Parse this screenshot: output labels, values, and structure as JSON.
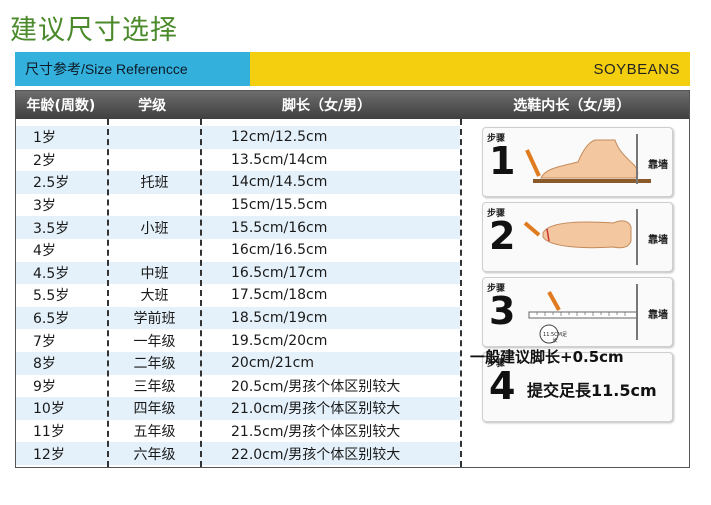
{
  "page_title": "建议尺寸选择",
  "banner": {
    "left_text": "尺寸参考/Size Referencce",
    "brand": "SOYBEANS",
    "left_color": "#34b0dc",
    "right_color": "#f4cf10"
  },
  "table": {
    "headers": [
      "年龄(周数)",
      "学级",
      "脚长（女/男）",
      "选鞋内长（女/男）"
    ],
    "rows": [
      {
        "age": "1岁",
        "grade": "",
        "foot": "12cm/12.5cm"
      },
      {
        "age": "2岁",
        "grade": "",
        "foot": "13.5cm/14cm"
      },
      {
        "age": "2.5岁",
        "grade": "托班",
        "foot": "14cm/14.5cm"
      },
      {
        "age": "3岁",
        "grade": "",
        "foot": "15cm/15.5cm"
      },
      {
        "age": "3.5岁",
        "grade": "小班",
        "foot": "15.5cm/16cm"
      },
      {
        "age": "4岁",
        "grade": "",
        "foot": "16cm/16.5cm"
      },
      {
        "age": "4.5岁",
        "grade": "中班",
        "foot": "16.5cm/17cm"
      },
      {
        "age": "5.5岁",
        "grade": "大班",
        "foot": "17.5cm/18cm"
      },
      {
        "age": "6.5岁",
        "grade": "学前班",
        "foot": "18.5cm/19cm"
      },
      {
        "age": "7岁",
        "grade": "一年级",
        "foot": "19.5cm/20cm"
      },
      {
        "age": "8岁",
        "grade": "二年级",
        "foot": "20cm/21cm"
      },
      {
        "age": "9岁",
        "grade": "三年级",
        "foot": "20.5cm/男孩个体区别较大"
      },
      {
        "age": "10岁",
        "grade": "四年级",
        "foot": "21.0cm/男孩个体区别较大"
      },
      {
        "age": "11岁",
        "grade": "五年级",
        "foot": "21.5cm/男孩个体区别较大"
      },
      {
        "age": "12岁",
        "grade": "六年级",
        "foot": "22.0cm/男孩个体区别较大"
      }
    ]
  },
  "steps": [
    {
      "label": "步骤",
      "number": "1",
      "wall": "靠墙"
    },
    {
      "label": "步骤",
      "number": "2",
      "wall": "靠墙"
    },
    {
      "label": "步骤",
      "number": "3",
      "wall": "靠墙",
      "ruler_note": "11.5CM足长"
    },
    {
      "label": "步骤",
      "number": "4",
      "text": "提交足長11.5cm"
    }
  ],
  "advice": "一般建议脚长+0.5cm"
}
